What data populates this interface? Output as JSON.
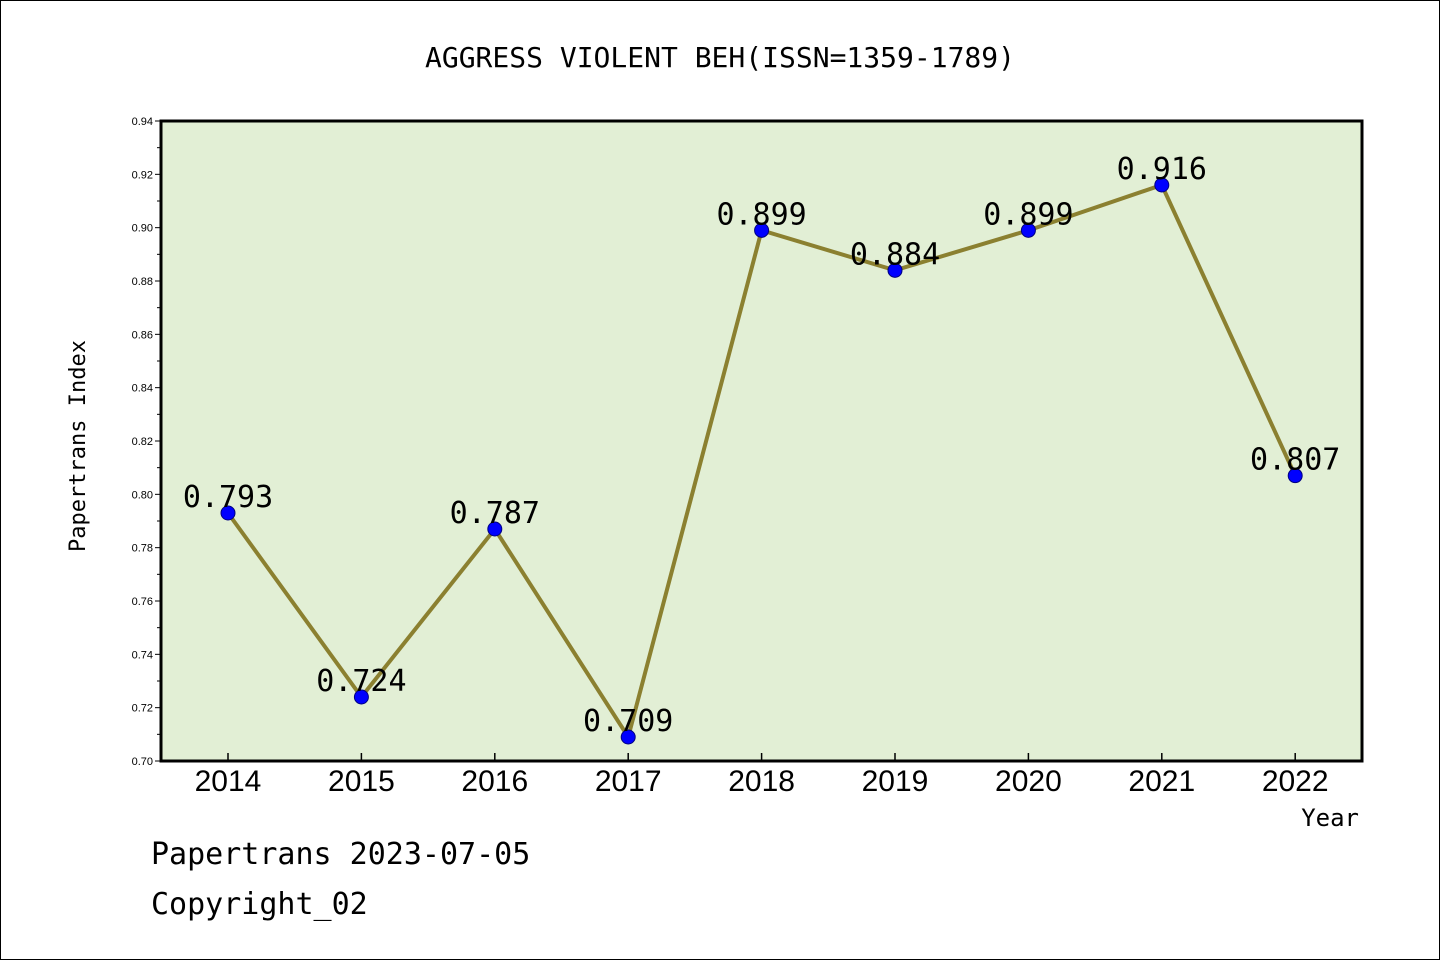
{
  "chart_data": {
    "type": "line",
    "title": "AGGRESS VIOLENT BEH(ISSN=1359-1789)",
    "xlabel": "Year",
    "ylabel": "Papertrans Index",
    "categories": [
      "2014",
      "2015",
      "2016",
      "2017",
      "2018",
      "2019",
      "2020",
      "2021",
      "2022"
    ],
    "values": [
      0.793,
      0.724,
      0.787,
      0.709,
      0.899,
      0.884,
      0.899,
      0.916,
      0.807
    ],
    "data_labels": [
      "0.793",
      "0.724",
      "0.787",
      "0.709",
      "0.899",
      "0.884",
      "0.899",
      "0.916",
      "0.807"
    ],
    "ylim": [
      0.7,
      0.94
    ],
    "yticks": [
      "0.70",
      "0.72",
      "0.74",
      "0.76",
      "0.78",
      "0.80",
      "0.82",
      "0.84",
      "0.86",
      "0.88",
      "0.90",
      "0.92",
      "0.94"
    ],
    "grid": false,
    "colors": {
      "plot_background": "#e2efd5",
      "line": "#8b8030",
      "marker": "#0000ff"
    }
  },
  "footer": {
    "line1": "Papertrans 2023-07-05",
    "line2": "Copyright_02"
  }
}
